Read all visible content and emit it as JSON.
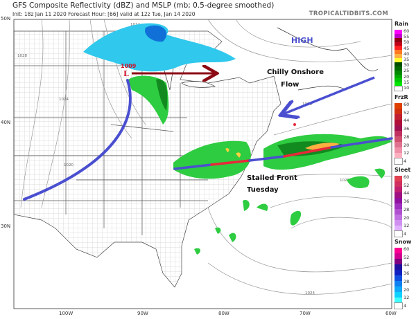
{
  "header": {
    "title": "GFS Composite Reflectivity (dBZ) and MSLP (mb; 0.5-degree smoothed)",
    "subtitle": "Init: 18z Jan 11 2020   Forecast Hour: [66]   valid at 12z Tue, Jan 14 2020",
    "brand": "TROPICALTIDBITS.COM"
  },
  "axes": {
    "lat_labels": [
      "50N",
      "40N",
      "30N"
    ],
    "lon_labels": [
      "100W",
      "90W",
      "80W",
      "70W",
      "60W"
    ]
  },
  "annotations": {
    "high": "HIGH",
    "low_pressure": "1009",
    "low_symbol": "L",
    "chilly_line1": "Chilly Onshore",
    "chilly_line2": "Flow",
    "front_line1": "Stalled Front",
    "front_line2": "Tuesday",
    "annotation_blue": "#4a4fd0",
    "arrow_darkred": "#8b0a14",
    "front_red": "#e8283a"
  },
  "isobar_labels": [
    "1012",
    "1028",
    "1024",
    "1020",
    "1028",
    "1028",
    "1024"
  ],
  "legend": [
    {
      "title": "Rain",
      "labels": [
        "60",
        "55",
        "50",
        "45",
        "40",
        "35",
        "30",
        "25",
        "20",
        "15",
        "10"
      ],
      "colors": [
        "#ff00ff",
        "#c000c8",
        "#900010",
        "#c00018",
        "#ff2020",
        "#ff7a20",
        "#ffb040",
        "#ffff30",
        "#004d00",
        "#006a00",
        "#008a00",
        "#00a800",
        "#00c800",
        "#00e800",
        "#ffffff"
      ]
    },
    {
      "title": "FrzR",
      "labels": [
        "60",
        "52",
        "44",
        "36",
        "28",
        "20",
        "12",
        "4"
      ],
      "colors": [
        "#e04000",
        "#d03010",
        "#c02030",
        "#b01038",
        "#a01050",
        "#c03060",
        "#d05070",
        "#e07090",
        "#f090a8",
        "#ffb0c0",
        "#ffffff"
      ]
    },
    {
      "title": "Sleet",
      "labels": [
        "60",
        "52",
        "44",
        "36",
        "28",
        "20",
        "12",
        "4"
      ],
      "colors": [
        "#e04050",
        "#d03060",
        "#c02070",
        "#a01080",
        "#9010a0",
        "#a030c0",
        "#b050d0",
        "#c070e0",
        "#d090f0",
        "#e0b0ff",
        "#ffffff"
      ]
    },
    {
      "title": "Snow",
      "labels": [
        "60",
        "52",
        "44",
        "36",
        "28",
        "20",
        "12",
        "4"
      ],
      "colors": [
        "#ff0090",
        "#d00090",
        "#800080",
        "#2010a0",
        "#1020c0",
        "#1050e0",
        "#1080f0",
        "#10a8f8",
        "#10d0ff",
        "#40ffff",
        "#ffffff"
      ]
    }
  ]
}
